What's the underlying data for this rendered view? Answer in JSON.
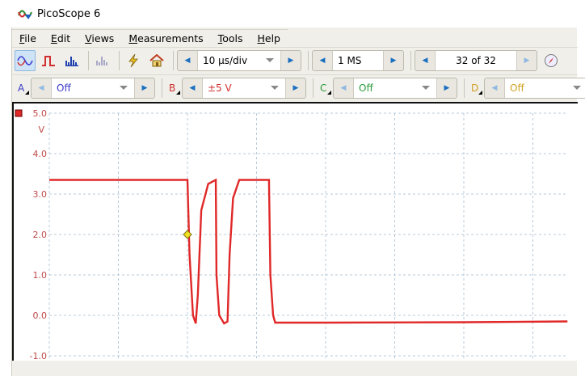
{
  "window": {
    "title": "PicoScope 6"
  },
  "menu": [
    {
      "label": "File",
      "u": "F",
      "rest": "ile"
    },
    {
      "label": "Edit",
      "u": "E",
      "rest": "dit"
    },
    {
      "label": "Views",
      "u": "V",
      "rest": "iews"
    },
    {
      "label": "Measurements",
      "u": "M",
      "rest": "easurements"
    },
    {
      "label": "Tools",
      "u": "T",
      "rest": "ools"
    },
    {
      "label": "Help",
      "u": "H",
      "rest": "elp"
    }
  ],
  "toolbar": {
    "icons": [
      "scope-view-icon",
      "persistence-icon",
      "spectrum-icon",
      "spectrum-disabled-icon",
      "signal-generator-icon",
      "home-icon"
    ],
    "timebase": "10 µs/div",
    "samples": "1 MS",
    "buffer": "32 of 32"
  },
  "channels": [
    {
      "name": "A",
      "range": "Off",
      "color": "#3a3ac8"
    },
    {
      "name": "B",
      "range": "±5 V",
      "color": "#d03030"
    },
    {
      "name": "C",
      "range": "Off",
      "color": "#2a9a3a"
    },
    {
      "name": "D",
      "range": "Off",
      "color": "#d0a020"
    }
  ],
  "chart_data": {
    "type": "line",
    "ylabel": "V",
    "yticks": [
      "5.0",
      "4.0",
      "3.0",
      "2.0",
      "1.0",
      "0.0",
      "-1.0"
    ],
    "ylim": [
      -1.0,
      5.0
    ],
    "xlim_us": [
      0,
      75
    ],
    "x_div_us": 10,
    "grid": true,
    "series": [
      {
        "channel": "B",
        "color": "#e02828",
        "x": [
          0,
          20,
          20.3,
          20.8,
          21.2,
          21.5,
          22,
          23,
          24.1,
          24.2,
          24.6,
          25.3,
          25.8,
          26.1,
          26.6,
          27.5,
          31.8,
          32.0,
          32.4,
          32.7,
          40,
          60,
          75
        ],
        "y": [
          3.35,
          3.35,
          1.5,
          0,
          -0.2,
          0.5,
          2.6,
          3.25,
          3.35,
          1.0,
          0,
          -0.2,
          -0.15,
          1.5,
          2.9,
          3.35,
          3.35,
          1.0,
          0,
          -0.18,
          -0.18,
          -0.17,
          -0.15
        ]
      }
    ],
    "trigger": {
      "x": 20,
      "y": 2.0,
      "color": "#f0e020"
    }
  }
}
